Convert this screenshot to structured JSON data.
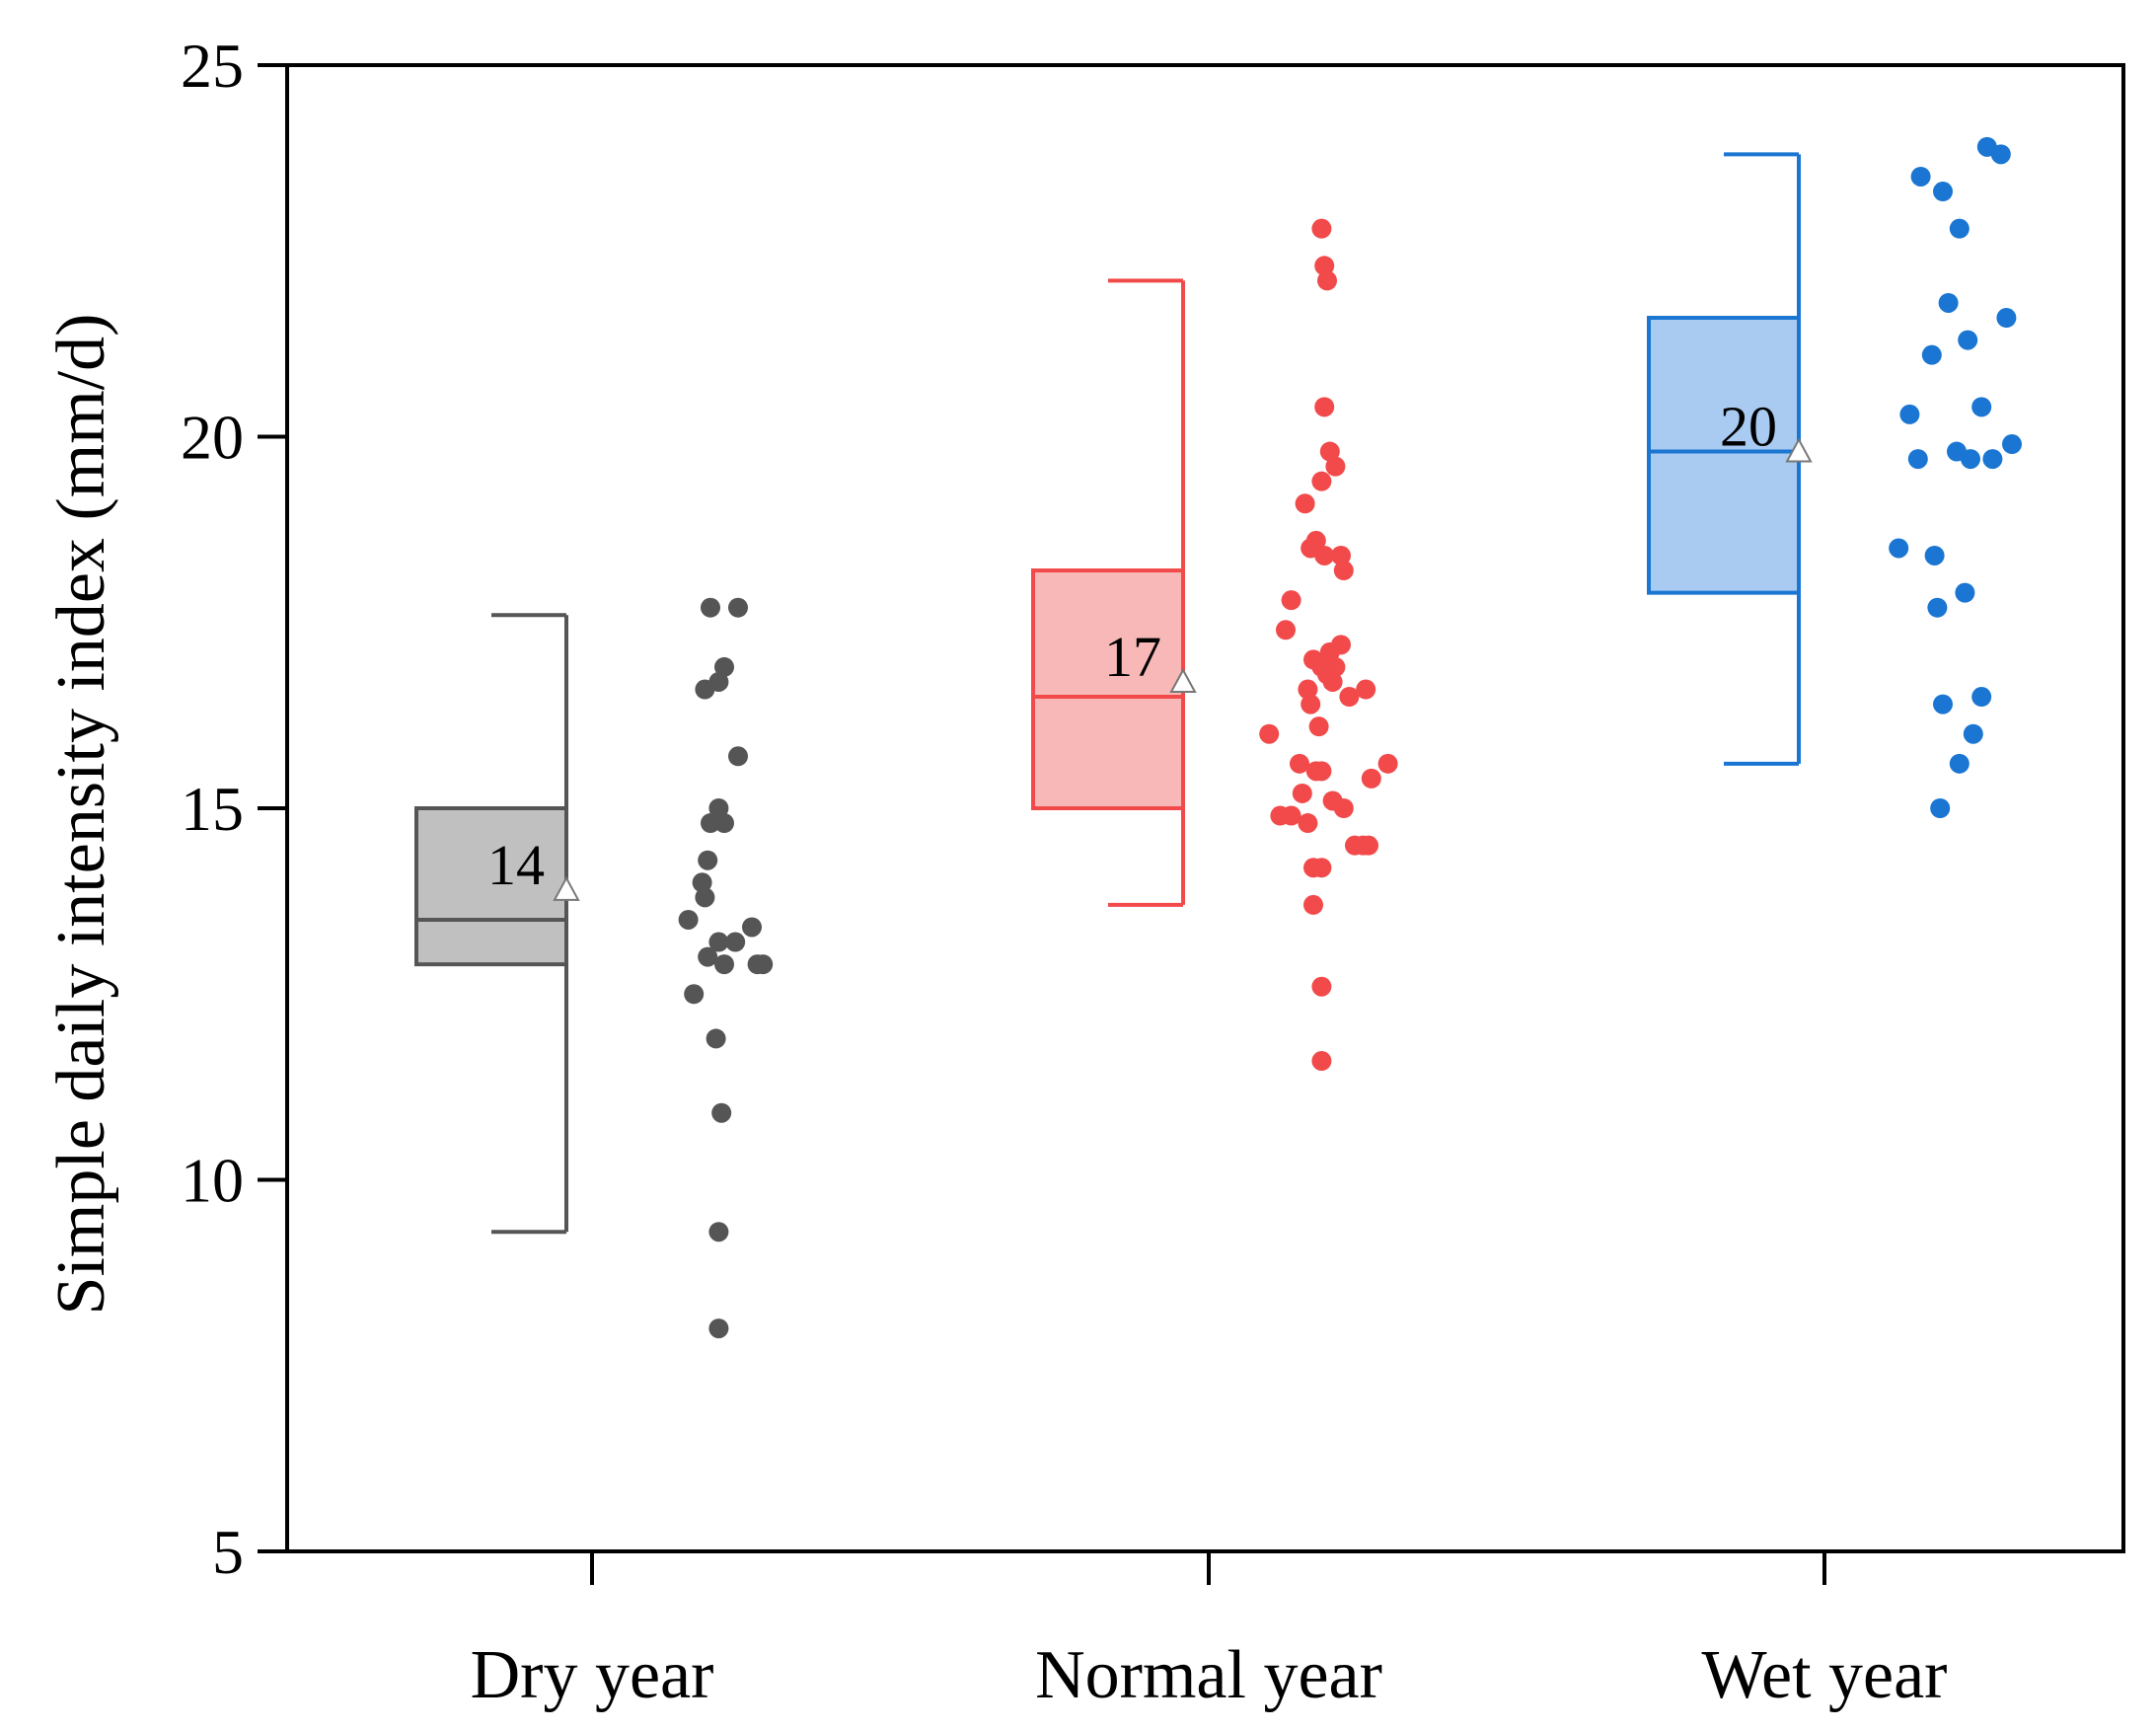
{
  "chart_data": {
    "type": "box",
    "ylabel": "Simple daily intensity index (mm/d)",
    "xlabel": "",
    "ylim": [
      5,
      25
    ],
    "yticks": [
      5,
      10,
      15,
      20,
      25
    ],
    "groups": [
      {
        "name": "Dry year",
        "color": "#555555",
        "fill": "#c0c0c0",
        "whisker_low": 9.3,
        "q1": 12.9,
        "median": 13.5,
        "q3": 15.0,
        "whisker_high": 17.6,
        "mean": 13.9,
        "mean_label": "14",
        "points": [
          17.7,
          17.7,
          16.9,
          16.7,
          16.6,
          15.7,
          15.0,
          14.8,
          14.8,
          14.3,
          14.0,
          13.8,
          13.5,
          13.4,
          13.2,
          13.2,
          13.0,
          12.9,
          12.9,
          12.9,
          12.5,
          11.9,
          10.9,
          9.3,
          8.0
        ],
        "points_offset": [
          1.0,
          0.0,
          0.5,
          0.3,
          -0.2,
          1.0,
          0.3,
          0.0,
          0.5,
          -0.1,
          -0.3,
          -0.2,
          -0.8,
          1.5,
          0.9,
          0.3,
          -0.1,
          0.5,
          1.7,
          1.9,
          -0.6,
          0.2,
          0.4,
          0.3,
          0.3
        ]
      },
      {
        "name": "Normal year",
        "color": "#f24a4a",
        "fill": "#f8b8b8",
        "whisker_low": 13.7,
        "q1": 15.0,
        "median": 16.5,
        "q3": 18.2,
        "whisker_high": 22.1,
        "mean": 16.7,
        "mean_label": "17",
        "points": [
          22.8,
          22.3,
          22.1,
          20.4,
          19.8,
          19.6,
          19.4,
          19.1,
          18.6,
          18.5,
          18.4,
          18.4,
          18.2,
          17.8,
          17.4,
          17.2,
          17.1,
          17.0,
          16.9,
          16.9,
          16.8,
          16.7,
          16.6,
          16.6,
          16.5,
          16.4,
          16.1,
          16.0,
          15.6,
          15.6,
          15.5,
          15.5,
          15.4,
          15.2,
          15.1,
          15.0,
          14.9,
          14.9,
          14.8,
          14.5,
          14.5,
          14.5,
          14.2,
          14.2,
          13.7,
          12.6,
          11.6
        ],
        "points_offset": [
          -0.2,
          -0.1,
          0.0,
          -0.1,
          0.1,
          0.3,
          -0.2,
          -0.8,
          -0.4,
          -0.6,
          -0.1,
          0.5,
          0.6,
          -1.3,
          -1.5,
          0.5,
          0.1,
          -0.5,
          -0.2,
          0.3,
          0.0,
          0.2,
          1.4,
          -0.7,
          0.8,
          -0.6,
          -0.3,
          -2.1,
          2.2,
          -1.0,
          -0.4,
          -0.2,
          1.6,
          -0.9,
          0.2,
          0.6,
          -1.3,
          -1.7,
          -0.7,
          1.0,
          1.3,
          1.5,
          -0.5,
          -0.2,
          -0.5,
          -0.2,
          -0.2
        ]
      },
      {
        "name": "Wet year",
        "color": "#1a76d2",
        "fill": "#a9cbf2",
        "whisker_low": 15.6,
        "q1": 17.9,
        "median": 19.8,
        "q3": 21.6,
        "whisker_high": 23.8,
        "mean": 19.8,
        "mean_label": "20",
        "points": [
          23.9,
          23.8,
          23.5,
          23.3,
          22.8,
          21.8,
          21.6,
          21.3,
          21.1,
          20.4,
          20.3,
          19.9,
          19.8,
          19.7,
          19.7,
          19.7,
          18.5,
          18.4,
          17.9,
          17.7,
          16.5,
          16.4,
          16.0,
          15.6,
          15.0
        ],
        "points_offset": [
          1.6,
          2.1,
          -0.8,
          0.0,
          0.6,
          0.2,
          2.3,
          0.9,
          -0.4,
          1.4,
          -1.2,
          2.5,
          0.5,
          -0.9,
          1.0,
          1.8,
          -1.6,
          -0.3,
          0.8,
          -0.2,
          1.4,
          0.0,
          1.1,
          0.6,
          -0.1
        ]
      }
    ]
  }
}
